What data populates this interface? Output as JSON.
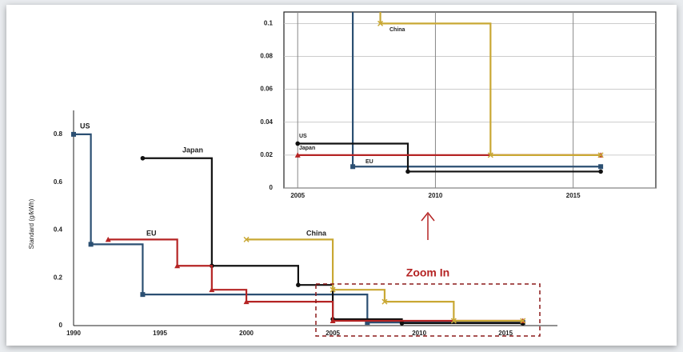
{
  "chart_data": [
    {
      "type": "line",
      "step": true,
      "y_label": "Standard (g/kWh)",
      "annotation": "Zoom In",
      "xlim": [
        1990,
        2018
      ],
      "ylim": [
        0,
        0.9
      ],
      "xticks": [
        1990,
        1995,
        2000,
        2005,
        2010,
        2015
      ],
      "yticks": [
        0,
        0.2,
        0.4,
        0.6,
        0.8
      ],
      "grid": false,
      "series": [
        {
          "name": "US",
          "color": "#2b4f72",
          "marker": "square",
          "x": [
            1990,
            1991,
            1994,
            2007,
            2016
          ],
          "values": [
            0.8,
            0.34,
            0.13,
            0.013,
            0.013
          ]
        },
        {
          "name": "Japan",
          "color": "#111111",
          "marker": "circle",
          "x": [
            1994,
            1998,
            2003,
            2005,
            2009,
            2016
          ],
          "values": [
            0.7,
            0.25,
            0.17,
            0.027,
            0.01,
            0.01
          ]
        },
        {
          "name": "EU",
          "color": "#b52424",
          "marker": "triangle",
          "x": [
            1992,
            1996,
            1998,
            2000,
            2005,
            2016
          ],
          "values": [
            0.36,
            0.25,
            0.15,
            0.1,
            0.02,
            0.02
          ]
        },
        {
          "name": "China",
          "color": "#c9a834",
          "marker": "cross",
          "x": [
            2000,
            2005,
            2008,
            2012,
            2016
          ],
          "values": [
            0.36,
            0.15,
            0.1,
            0.02,
            0.02
          ]
        }
      ]
    },
    {
      "type": "line",
      "step": true,
      "xlim": [
        2004.5,
        2018
      ],
      "ylim": [
        0,
        0.107
      ],
      "xticks": [
        2005,
        2010,
        2015
      ],
      "yticks": [
        0,
        0.02,
        0.04,
        0.06,
        0.08,
        0.1
      ],
      "grid": true,
      "series": [
        {
          "name": "US",
          "color": "#2b4f72",
          "marker": "square",
          "x": [
            2004,
            2007,
            2016
          ],
          "values": [
            0.13,
            0.013,
            0.013
          ]
        },
        {
          "name": "Japan",
          "color": "#111111",
          "marker": "circle",
          "x": [
            2005,
            2009,
            2016
          ],
          "values": [
            0.027,
            0.01,
            0.01
          ]
        },
        {
          "name": "EU",
          "color": "#b52424",
          "marker": "triangle",
          "x": [
            2005,
            2016
          ],
          "values": [
            0.02,
            0.02
          ]
        },
        {
          "name": "China",
          "color": "#c9a834",
          "marker": "cross",
          "x": [
            2004,
            2008,
            2012,
            2016
          ],
          "values": [
            0.15,
            0.1,
            0.02,
            0.02
          ]
        }
      ]
    }
  ]
}
